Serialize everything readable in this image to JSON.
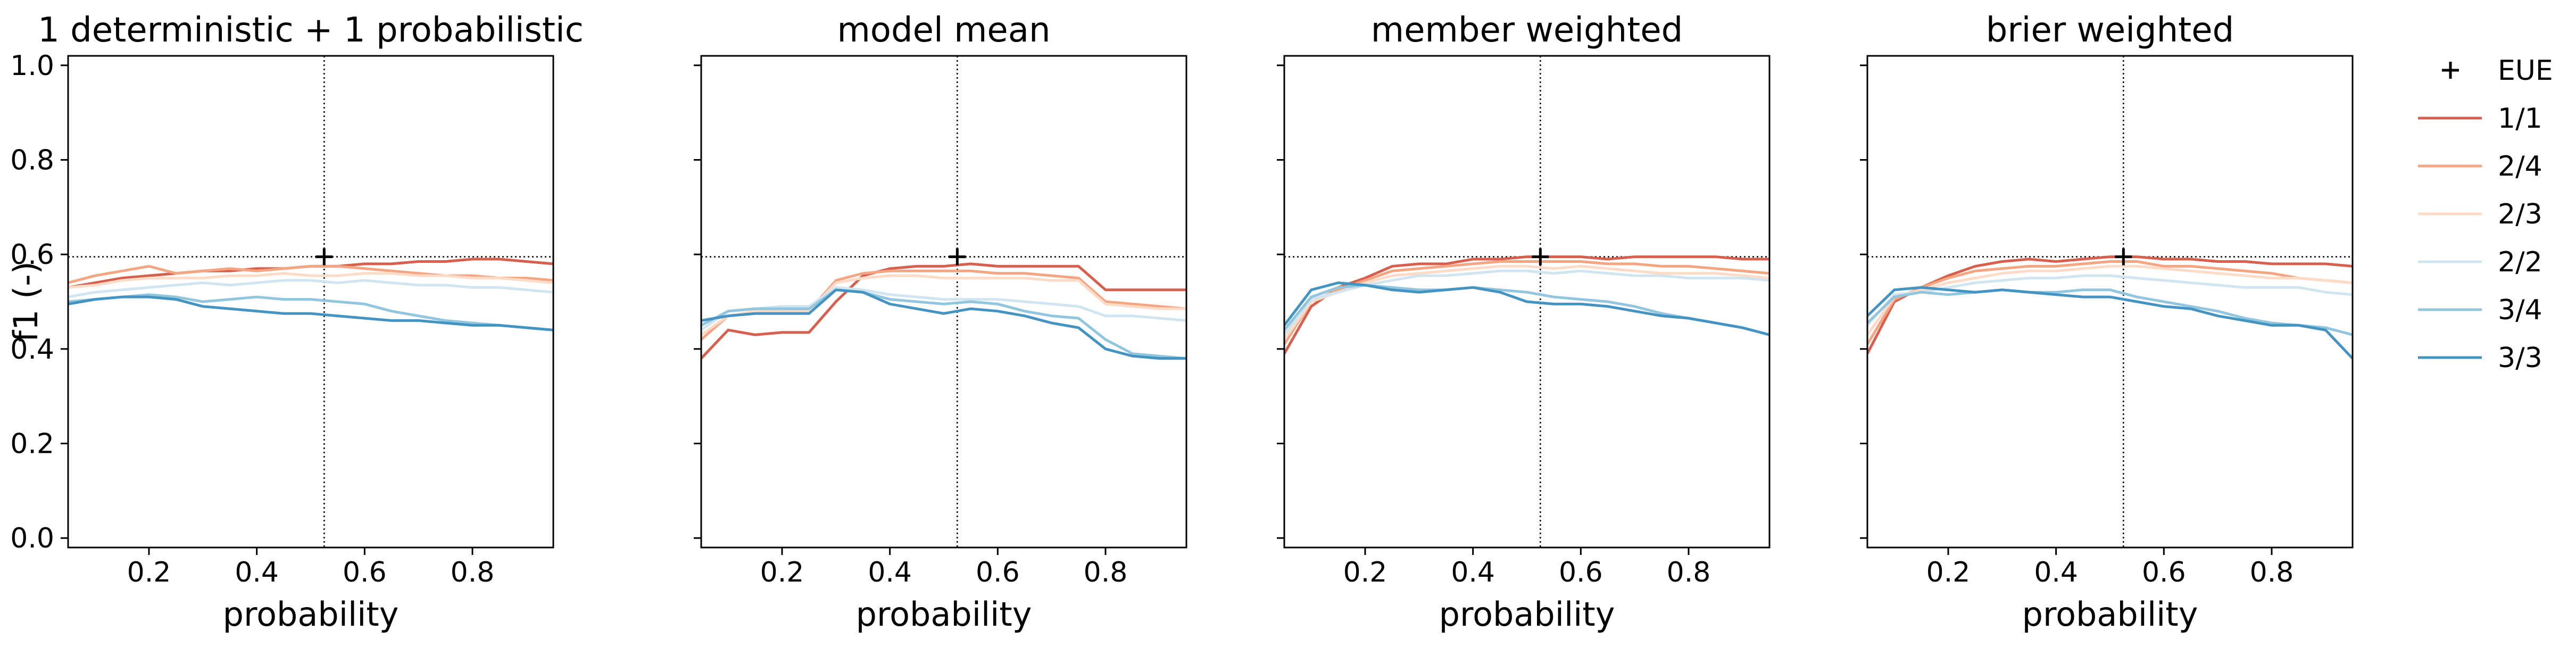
{
  "chart_data": {
    "type": "line",
    "ylabel": "f1 (-)",
    "ylim": [
      -0.02,
      1.02
    ],
    "xlim": [
      0.05,
      0.95
    ],
    "x_ticks": [
      "0.2",
      "0.4",
      "0.6",
      "0.8"
    ],
    "x_tick_values": [
      0.2,
      0.4,
      0.6,
      0.8
    ],
    "y_ticks": [
      "0.0",
      "0.2",
      "0.4",
      "0.6",
      "0.8",
      "1.0"
    ],
    "y_tick_values": [
      0.0,
      0.2,
      0.4,
      0.6,
      0.8,
      1.0
    ],
    "reference": {
      "x": 0.525,
      "y": 0.595,
      "label": "EUE"
    },
    "legend": {
      "position": "right",
      "entries": [
        {
          "label": "EUE",
          "marker": "plus",
          "color": "#000000"
        },
        {
          "label": "1/1",
          "color": "#d6604d"
        },
        {
          "label": "2/4",
          "color": "#f4a582"
        },
        {
          "label": "2/3",
          "color": "#fddbc7"
        },
        {
          "label": "2/2",
          "color": "#d1e5f0"
        },
        {
          "label": "3/4",
          "color": "#92c5de"
        },
        {
          "label": "3/3",
          "color": "#4393c3"
        }
      ]
    },
    "panels": [
      {
        "title": "1 deterministic + 1 probabilistic",
        "xlabel": "probability",
        "x": [
          0.05,
          0.1,
          0.15,
          0.2,
          0.25,
          0.3,
          0.35,
          0.4,
          0.45,
          0.5,
          0.55,
          0.6,
          0.65,
          0.7,
          0.75,
          0.8,
          0.85,
          0.9,
          0.95
        ],
        "series": [
          {
            "name": "1/1",
            "color": "#d6604d",
            "values": [
              0.53,
              0.54,
              0.55,
              0.555,
              0.56,
              0.565,
              0.565,
              0.57,
              0.57,
              0.575,
              0.575,
              0.58,
              0.58,
              0.585,
              0.585,
              0.59,
              0.59,
              0.585,
              0.58
            ]
          },
          {
            "name": "2/4",
            "color": "#f4a582",
            "values": [
              0.54,
              0.555,
              0.565,
              0.575,
              0.56,
              0.565,
              0.57,
              0.565,
              0.57,
              0.575,
              0.575,
              0.57,
              0.565,
              0.56,
              0.555,
              0.555,
              0.55,
              0.55,
              0.545
            ]
          },
          {
            "name": "2/3",
            "color": "#fddbc7",
            "values": [
              0.53,
              0.535,
              0.545,
              0.55,
              0.55,
              0.55,
              0.555,
              0.555,
              0.56,
              0.555,
              0.555,
              0.56,
              0.56,
              0.555,
              0.555,
              0.55,
              0.55,
              0.545,
              0.54
            ]
          },
          {
            "name": "2/2",
            "color": "#d1e5f0",
            "values": [
              0.51,
              0.52,
              0.525,
              0.53,
              0.535,
              0.54,
              0.535,
              0.54,
              0.545,
              0.545,
              0.54,
              0.545,
              0.54,
              0.535,
              0.535,
              0.53,
              0.53,
              0.525,
              0.52
            ]
          },
          {
            "name": "3/4",
            "color": "#92c5de",
            "values": [
              0.5,
              0.505,
              0.51,
              0.515,
              0.51,
              0.5,
              0.505,
              0.51,
              0.505,
              0.505,
              0.5,
              0.495,
              0.48,
              0.47,
              0.46,
              0.455,
              0.45,
              0.445,
              0.44
            ]
          },
          {
            "name": "3/3",
            "color": "#4393c3",
            "values": [
              0.495,
              0.505,
              0.51,
              0.51,
              0.505,
              0.49,
              0.485,
              0.48,
              0.475,
              0.475,
              0.47,
              0.465,
              0.46,
              0.46,
              0.455,
              0.45,
              0.45,
              0.445,
              0.44
            ]
          }
        ]
      },
      {
        "title": "model mean",
        "xlabel": "probability",
        "x": [
          0.05,
          0.1,
          0.15,
          0.2,
          0.25,
          0.3,
          0.35,
          0.4,
          0.45,
          0.5,
          0.55,
          0.6,
          0.65,
          0.7,
          0.75,
          0.8,
          0.85,
          0.9,
          0.95
        ],
        "series": [
          {
            "name": "1/1",
            "color": "#d6604d",
            "values": [
              0.38,
              0.44,
              0.43,
              0.435,
              0.435,
              0.5,
              0.555,
              0.57,
              0.575,
              0.575,
              0.58,
              0.575,
              0.575,
              0.575,
              0.575,
              0.525,
              0.525,
              0.525,
              0.525
            ]
          },
          {
            "name": "2/4",
            "color": "#f4a582",
            "values": [
              0.42,
              0.47,
              0.475,
              0.48,
              0.48,
              0.545,
              0.56,
              0.565,
              0.565,
              0.565,
              0.565,
              0.56,
              0.56,
              0.555,
              0.55,
              0.5,
              0.495,
              0.49,
              0.485
            ]
          },
          {
            "name": "2/3",
            "color": "#fddbc7",
            "values": [
              0.43,
              0.47,
              0.48,
              0.48,
              0.48,
              0.54,
              0.55,
              0.555,
              0.555,
              0.55,
              0.55,
              0.55,
              0.55,
              0.545,
              0.545,
              0.495,
              0.49,
              0.485,
              0.485
            ]
          },
          {
            "name": "2/2",
            "color": "#d1e5f0",
            "values": [
              0.44,
              0.48,
              0.485,
              0.49,
              0.49,
              0.53,
              0.525,
              0.515,
              0.51,
              0.505,
              0.505,
              0.505,
              0.5,
              0.495,
              0.49,
              0.47,
              0.47,
              0.465,
              0.46
            ]
          },
          {
            "name": "3/4",
            "color": "#92c5de",
            "values": [
              0.45,
              0.48,
              0.485,
              0.485,
              0.485,
              0.525,
              0.52,
              0.505,
              0.5,
              0.495,
              0.5,
              0.495,
              0.48,
              0.47,
              0.465,
              0.42,
              0.39,
              0.385,
              0.38
            ]
          },
          {
            "name": "3/3",
            "color": "#4393c3",
            "values": [
              0.46,
              0.47,
              0.475,
              0.475,
              0.475,
              0.525,
              0.52,
              0.495,
              0.485,
              0.475,
              0.485,
              0.48,
              0.47,
              0.455,
              0.445,
              0.4,
              0.385,
              0.38,
              0.38
            ]
          }
        ]
      },
      {
        "title": "member weighted",
        "xlabel": "probability",
        "x": [
          0.05,
          0.1,
          0.15,
          0.2,
          0.25,
          0.3,
          0.35,
          0.4,
          0.45,
          0.5,
          0.55,
          0.6,
          0.65,
          0.7,
          0.75,
          0.8,
          0.85,
          0.9,
          0.95
        ],
        "series": [
          {
            "name": "1/1",
            "color": "#d6604d",
            "values": [
              0.39,
              0.49,
              0.53,
              0.55,
              0.575,
              0.58,
              0.58,
              0.59,
              0.59,
              0.595,
              0.595,
              0.595,
              0.59,
              0.595,
              0.595,
              0.595,
              0.595,
              0.59,
              0.59
            ]
          },
          {
            "name": "2/4",
            "color": "#f4a582",
            "values": [
              0.41,
              0.5,
              0.525,
              0.545,
              0.565,
              0.57,
              0.575,
              0.58,
              0.585,
              0.585,
              0.585,
              0.585,
              0.58,
              0.58,
              0.575,
              0.575,
              0.57,
              0.565,
              0.56
            ]
          },
          {
            "name": "2/3",
            "color": "#fddbc7",
            "values": [
              0.42,
              0.5,
              0.52,
              0.54,
              0.555,
              0.56,
              0.565,
              0.57,
              0.575,
              0.575,
              0.57,
              0.575,
              0.57,
              0.565,
              0.56,
              0.56,
              0.56,
              0.555,
              0.55
            ]
          },
          {
            "name": "2/2",
            "color": "#d1e5f0",
            "values": [
              0.43,
              0.505,
              0.52,
              0.535,
              0.545,
              0.555,
              0.555,
              0.56,
              0.565,
              0.565,
              0.56,
              0.565,
              0.56,
              0.555,
              0.555,
              0.55,
              0.55,
              0.55,
              0.545
            ]
          },
          {
            "name": "3/4",
            "color": "#92c5de",
            "values": [
              0.44,
              0.51,
              0.53,
              0.535,
              0.53,
              0.525,
              0.525,
              0.53,
              0.525,
              0.52,
              0.51,
              0.505,
              0.5,
              0.49,
              0.475,
              0.465,
              0.455,
              0.445,
              0.43
            ]
          },
          {
            "name": "3/3",
            "color": "#4393c3",
            "values": [
              0.45,
              0.525,
              0.54,
              0.535,
              0.525,
              0.52,
              0.525,
              0.53,
              0.52,
              0.5,
              0.495,
              0.495,
              0.49,
              0.48,
              0.47,
              0.465,
              0.455,
              0.445,
              0.43
            ]
          }
        ]
      },
      {
        "title": "brier weighted",
        "xlabel": "probability",
        "x": [
          0.05,
          0.1,
          0.15,
          0.2,
          0.25,
          0.3,
          0.35,
          0.4,
          0.45,
          0.5,
          0.55,
          0.6,
          0.65,
          0.7,
          0.75,
          0.8,
          0.85,
          0.9,
          0.95
        ],
        "series": [
          {
            "name": "1/1",
            "color": "#d6604d",
            "values": [
              0.39,
              0.5,
              0.53,
              0.555,
              0.575,
              0.585,
              0.59,
              0.585,
              0.59,
              0.595,
              0.595,
              0.59,
              0.59,
              0.585,
              0.585,
              0.58,
              0.58,
              0.58,
              0.575
            ]
          },
          {
            "name": "2/4",
            "color": "#f4a582",
            "values": [
              0.41,
              0.505,
              0.53,
              0.55,
              0.565,
              0.57,
              0.575,
              0.575,
              0.58,
              0.585,
              0.585,
              0.575,
              0.575,
              0.57,
              0.565,
              0.56,
              0.55,
              0.545,
              0.54
            ]
          },
          {
            "name": "2/3",
            "color": "#fddbc7",
            "values": [
              0.43,
              0.51,
              0.525,
              0.54,
              0.55,
              0.56,
              0.565,
              0.565,
              0.57,
              0.575,
              0.575,
              0.57,
              0.565,
              0.56,
              0.555,
              0.55,
              0.55,
              0.545,
              0.54
            ]
          },
          {
            "name": "2/2",
            "color": "#d1e5f0",
            "values": [
              0.45,
              0.515,
              0.52,
              0.53,
              0.54,
              0.545,
              0.55,
              0.55,
              0.555,
              0.555,
              0.55,
              0.545,
              0.54,
              0.535,
              0.53,
              0.53,
              0.53,
              0.52,
              0.515
            ]
          },
          {
            "name": "3/4",
            "color": "#92c5de",
            "values": [
              0.455,
              0.51,
              0.52,
              0.515,
              0.52,
              0.525,
              0.52,
              0.52,
              0.525,
              0.525,
              0.51,
              0.5,
              0.49,
              0.48,
              0.465,
              0.455,
              0.45,
              0.445,
              0.43
            ]
          },
          {
            "name": "3/3",
            "color": "#4393c3",
            "values": [
              0.47,
              0.525,
              0.53,
              0.525,
              0.52,
              0.525,
              0.52,
              0.515,
              0.51,
              0.51,
              0.5,
              0.49,
              0.485,
              0.47,
              0.46,
              0.45,
              0.45,
              0.44,
              0.38
            ]
          }
        ]
      }
    ]
  }
}
